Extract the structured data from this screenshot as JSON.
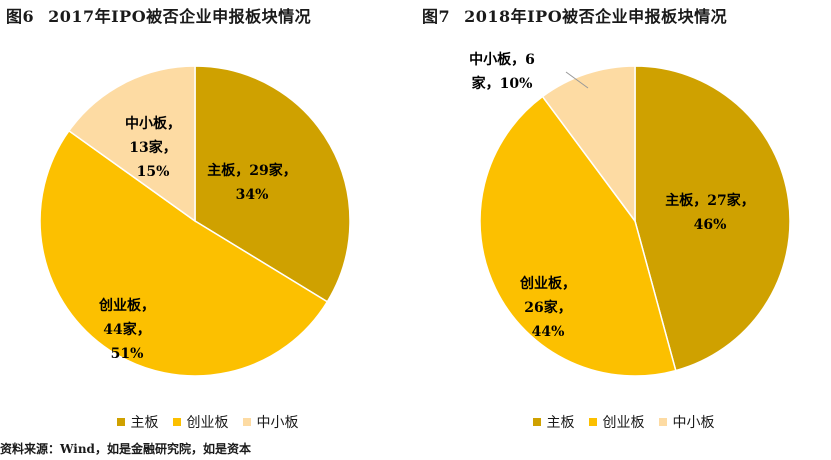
{
  "colors": {
    "main": "#CFA100",
    "chinext": "#FCC000",
    "sme": "#FDDBA3"
  },
  "chart_data": [
    {
      "type": "pie",
      "fig_no": "图6",
      "title": "2017年IPO被否企业申报板块情况",
      "slices": [
        {
          "name": "主板",
          "count": 29,
          "count_text": "29家",
          "pct": 34,
          "pct_text": "34%"
        },
        {
          "name": "创业板",
          "count": 44,
          "count_text": "44家",
          "pct": 51,
          "pct_text": "51%"
        },
        {
          "name": "中小板",
          "count": 13,
          "count_text": "13家",
          "pct": 15,
          "pct_text": "15%"
        }
      ],
      "legend": [
        "主板",
        "创业板",
        "中小板"
      ]
    },
    {
      "type": "pie",
      "fig_no": "图7",
      "title": "2018年IPO被否企业申报板块情况",
      "slices": [
        {
          "name": "主板",
          "count": 27,
          "count_text": "27家",
          "pct": 46,
          "pct_text": "46%"
        },
        {
          "name": "创业板",
          "count": 26,
          "count_text": "26家",
          "pct": 44,
          "pct_text": "44%"
        },
        {
          "name": "中小板",
          "count": 6,
          "count_text": "6",
          "pct": 10,
          "pct_text": "10%"
        }
      ],
      "legend": [
        "主板",
        "创业板",
        "中小板"
      ]
    }
  ],
  "source": "资料来源：Wind，如是金融研究院，如是资本"
}
